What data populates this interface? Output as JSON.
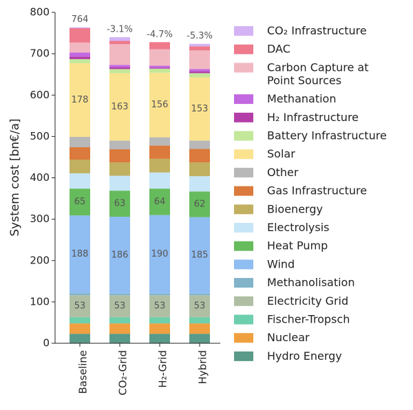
{
  "chart_data": {
    "type": "stacked-bar",
    "y_label": "System cost [bn€/a]",
    "categories": [
      "Baseline",
      "CO₂-Grid",
      "H₂-Grid",
      "Hybrid"
    ],
    "annotations": [
      "764",
      "-3.1%",
      "-4.7%",
      "-5.3%"
    ],
    "ylim": [
      0,
      800
    ],
    "yticks": [
      0,
      100,
      200,
      300,
      400,
      500,
      600,
      700,
      800
    ],
    "series": [
      {
        "name": "Hydro Energy",
        "color": "#5a9a88",
        "values": [
          23,
          23,
          23,
          23
        ]
      },
      {
        "name": "Nuclear",
        "color": "#f0a040",
        "values": [
          25,
          25,
          25,
          25
        ]
      },
      {
        "name": "Fischer-Tropsch",
        "color": "#6dcfac",
        "values": [
          15,
          15,
          15,
          15
        ]
      },
      {
        "name": "Electricity Grid",
        "color": "#b0bfa4",
        "values": [
          53,
          53,
          53,
          53
        ],
        "show_values": true
      },
      {
        "name": "Methanolisation",
        "color": "#82b3c8",
        "values": [
          5,
          4,
          4,
          4
        ]
      },
      {
        "name": "Wind",
        "color": "#90bdf2",
        "values": [
          188,
          186,
          190,
          185
        ],
        "show_values": true
      },
      {
        "name": "Heat Pump",
        "color": "#66bb5c",
        "values": [
          65,
          63,
          64,
          62
        ],
        "show_values": true
      },
      {
        "name": "Electrolysis",
        "color": "#c6e5f7",
        "values": [
          37,
          36,
          39,
          37
        ]
      },
      {
        "name": "Bioenergy",
        "color": "#c0b060",
        "values": [
          33,
          32,
          33,
          33
        ]
      },
      {
        "name": "Gas Infrastructure",
        "color": "#db7a3c",
        "values": [
          30,
          32,
          32,
          33
        ]
      },
      {
        "name": "Other",
        "color": "#b8b8b8",
        "values": [
          25,
          21,
          20,
          20
        ]
      },
      {
        "name": "Solar",
        "color": "#fbe28f",
        "values": [
          178,
          163,
          156,
          153
        ],
        "show_values": true
      },
      {
        "name": "Battery Infrastructure",
        "color": "#c3e89a",
        "values": [
          10,
          10,
          10,
          10
        ]
      },
      {
        "name": "H₂ Infrastructure",
        "color": "#b43ea8",
        "values": [
          6,
          4,
          2,
          4
        ]
      },
      {
        "name": "Methanation",
        "color": "#c268e0",
        "values": [
          10,
          6,
          5,
          6
        ]
      },
      {
        "name": "Carbon Capture at Point Sources",
        "color": "#f2b8c2",
        "values": [
          24,
          50,
          40,
          45
        ]
      },
      {
        "name": "DAC",
        "color": "#ee7a8c",
        "values": [
          35,
          8,
          17,
          10
        ]
      },
      {
        "name": "CO₂ Infrastructure",
        "color": "#d4b3f5",
        "values": [
          2,
          9,
          0,
          6
        ]
      }
    ]
  }
}
